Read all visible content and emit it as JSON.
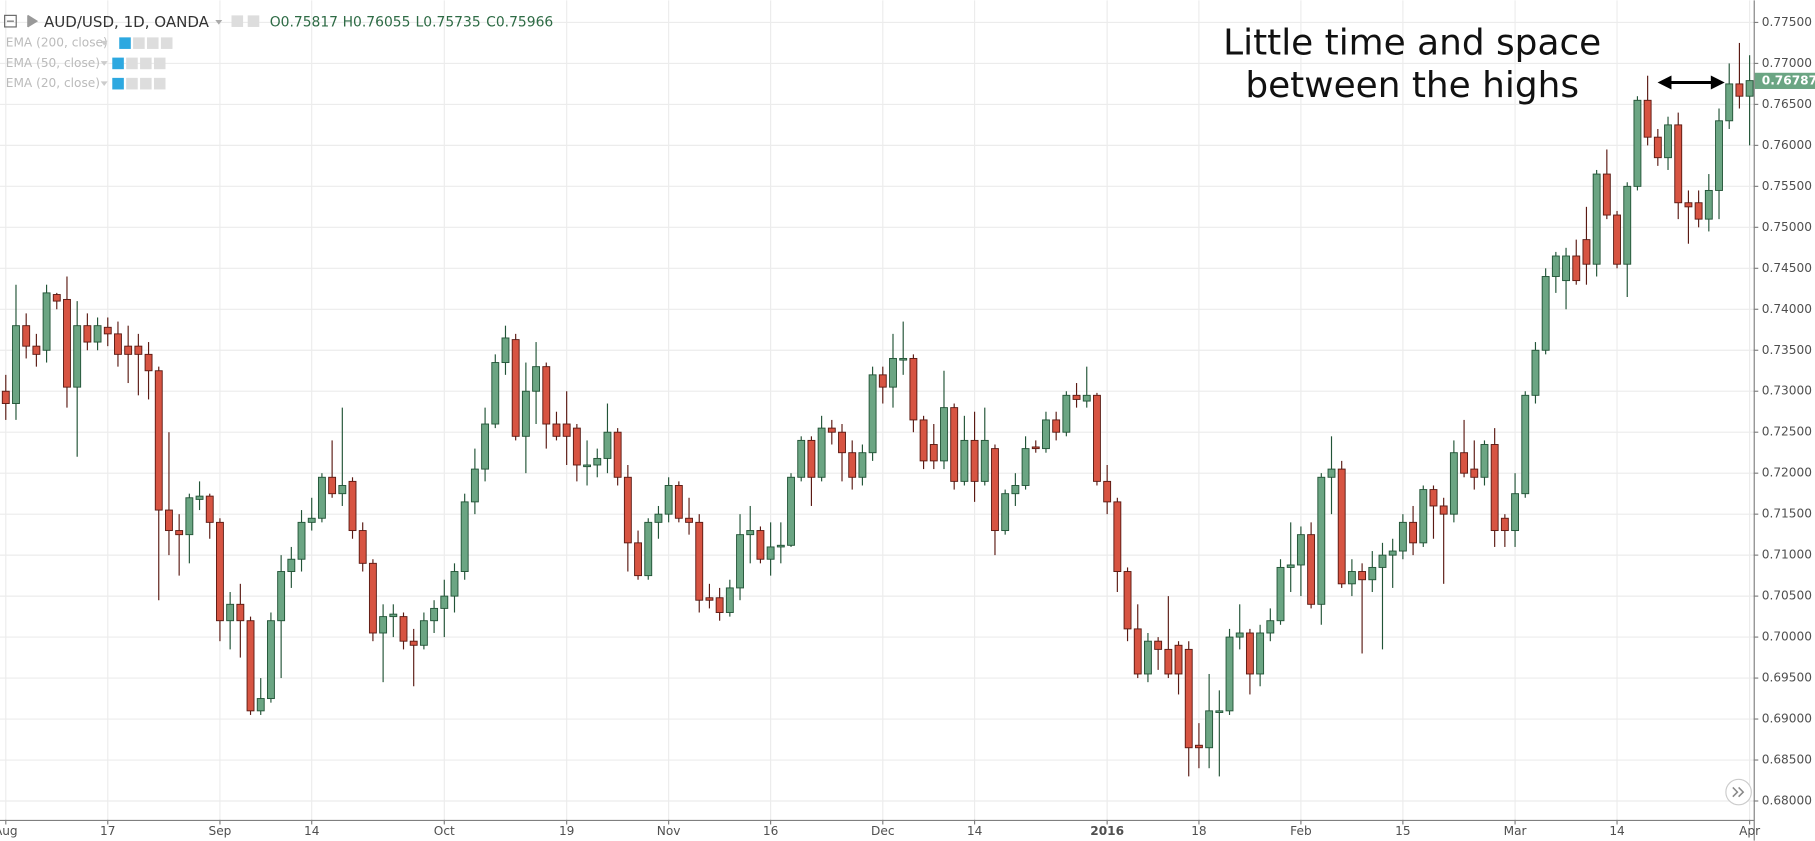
{
  "chart_data": {
    "type": "candlestick",
    "symbol": "AUD/USD, 1D, OANDA",
    "ohlc_readout": [
      "O0.75817",
      "H0.76055",
      "L0.75735",
      "C0.75966"
    ],
    "indicators": [
      "EMA (200, close)",
      "EMA (50, close)",
      "EMA (20, close)"
    ],
    "annotation": [
      "Little time and space",
      "between the highs"
    ],
    "last_price": {
      "value": 0.76787,
      "label": "0.76787"
    },
    "up_color": "#6ba583",
    "up_border": "#225437",
    "down_color": "#d75442",
    "down_border": "#5b1a13",
    "grid": true,
    "ylim": [
      0.6777,
      0.7777
    ],
    "yticks": [
      {
        "value": 0.68,
        "label": "0.68000"
      },
      {
        "value": 0.685,
        "label": "0.68500"
      },
      {
        "value": 0.69,
        "label": "0.69000"
      },
      {
        "value": 0.695,
        "label": "0.69500"
      },
      {
        "value": 0.7,
        "label": "0.70000"
      },
      {
        "value": 0.705,
        "label": "0.70500"
      },
      {
        "value": 0.71,
        "label": "0.71000"
      },
      {
        "value": 0.715,
        "label": "0.71500"
      },
      {
        "value": 0.72,
        "label": "0.72000"
      },
      {
        "value": 0.725,
        "label": "0.72500"
      },
      {
        "value": 0.73,
        "label": "0.73000"
      },
      {
        "value": 0.735,
        "label": "0.73500"
      },
      {
        "value": 0.74,
        "label": "0.74000"
      },
      {
        "value": 0.745,
        "label": "0.74500"
      },
      {
        "value": 0.75,
        "label": "0.75000"
      },
      {
        "value": 0.755,
        "label": "0.75500"
      },
      {
        "value": 0.76,
        "label": "0.76000"
      },
      {
        "value": 0.765,
        "label": "0.76500"
      },
      {
        "value": 0.77,
        "label": "0.77000"
      },
      {
        "value": 0.775,
        "label": "0.77500"
      }
    ],
    "categories": [
      "Aug",
      null,
      null,
      null,
      null,
      null,
      null,
      null,
      null,
      null,
      "17",
      null,
      null,
      null,
      null,
      null,
      null,
      null,
      null,
      null,
      null,
      "Sep",
      null,
      null,
      null,
      null,
      null,
      null,
      null,
      null,
      "14",
      null,
      null,
      null,
      null,
      null,
      null,
      null,
      null,
      null,
      null,
      null,
      null,
      "Oct",
      null,
      null,
      null,
      null,
      null,
      null,
      null,
      null,
      null,
      null,
      null,
      "19",
      null,
      null,
      null,
      null,
      null,
      null,
      null,
      null,
      null,
      "Nov",
      null,
      null,
      null,
      null,
      null,
      null,
      null,
      null,
      null,
      "16",
      null,
      null,
      null,
      null,
      null,
      null,
      null,
      null,
      null,
      null,
      "Dec",
      null,
      null,
      null,
      null,
      null,
      null,
      null,
      null,
      "14",
      null,
      null,
      null,
      null,
      null,
      null,
      null,
      null,
      null,
      null,
      null,
      null,
      "2016",
      null,
      null,
      null,
      null,
      null,
      null,
      null,
      null,
      "18",
      null,
      null,
      null,
      null,
      null,
      null,
      null,
      null,
      null,
      "Feb",
      null,
      null,
      null,
      null,
      null,
      null,
      null,
      null,
      null,
      "15",
      null,
      null,
      null,
      null,
      null,
      null,
      null,
      null,
      null,
      null,
      "Mar",
      null,
      null,
      null,
      null,
      null,
      null,
      null,
      null,
      null,
      "14",
      null,
      null,
      null,
      null,
      null,
      null,
      null,
      null,
      null,
      null,
      null,
      null,
      "Apr"
    ],
    "open": [
      0.73,
      0.7285,
      0.738,
      0.7355,
      0.735,
      0.7418,
      0.7412,
      0.7305,
      0.738,
      0.736,
      0.7378,
      0.737,
      0.7355,
      0.7355,
      0.7345,
      0.7325,
      0.7155,
      0.713,
      0.7125,
      0.7168,
      0.7172,
      0.714,
      0.702,
      0.704,
      0.702,
      0.691,
      0.6925,
      0.702,
      0.708,
      0.7095,
      0.714,
      0.7145,
      0.7195,
      0.7175,
      0.719,
      0.713,
      0.709,
      0.7005,
      0.7025,
      0.7025,
      0.6995,
      0.699,
      0.702,
      0.7035,
      0.705,
      0.708,
      0.7165,
      0.7205,
      0.726,
      0.7335,
      0.7363,
      0.7245,
      0.73,
      0.733,
      0.726,
      0.726,
      0.7255,
      0.7208,
      0.721,
      0.7218,
      0.725,
      0.7195,
      0.7115,
      0.7075,
      0.714,
      0.715,
      0.7185,
      0.7145,
      0.714,
      0.7048,
      0.7048,
      0.703,
      0.706,
      0.7125,
      0.713,
      0.7095,
      0.711,
      0.7112,
      0.7195,
      0.724,
      0.7195,
      0.7255,
      0.725,
      0.7225,
      0.7195,
      0.7225,
      0.732,
      0.7305,
      0.7338,
      0.734,
      0.7265,
      0.7235,
      0.7215,
      0.728,
      0.719,
      0.724,
      0.719,
      0.723,
      0.713,
      0.7175,
      0.7185,
      0.7232,
      0.723,
      0.7265,
      0.725,
      0.7295,
      0.7288,
      0.7295,
      0.719,
      0.7165,
      0.708,
      0.701,
      0.6955,
      0.6995,
      0.6985,
      0.699,
      0.6985,
      0.6868,
      0.6865,
      0.6908,
      0.691,
      0.7,
      0.7005,
      0.6955,
      0.7005,
      0.702,
      0.7085,
      0.7088,
      0.7125,
      0.704,
      0.7195,
      0.7205,
      0.7065,
      0.708,
      0.707,
      0.7085,
      0.71,
      0.7105,
      0.714,
      0.7115,
      0.718,
      0.716,
      0.715,
      0.7225,
      0.7205,
      0.7195,
      0.7235,
      0.7145,
      0.713,
      0.7175,
      0.7295,
      0.735,
      0.744,
      0.7435,
      0.7465,
      0.7485,
      0.7455,
      0.7565,
      0.7515,
      0.7455,
      0.755,
      0.7655,
      0.761,
      0.7585,
      0.7625,
      0.753,
      0.753,
      0.751,
      0.7545,
      0.763,
      0.7675,
      0.766
    ],
    "high": [
      0.732,
      0.743,
      0.7395,
      0.737,
      0.743,
      0.742,
      0.744,
      0.741,
      0.7395,
      0.739,
      0.739,
      0.7385,
      0.738,
      0.737,
      0.736,
      0.733,
      0.725,
      0.715,
      0.7175,
      0.719,
      0.7175,
      0.7145,
      0.7055,
      0.7065,
      0.7025,
      0.695,
      0.703,
      0.71,
      0.711,
      0.7155,
      0.717,
      0.72,
      0.724,
      0.728,
      0.7195,
      0.714,
      0.7095,
      0.704,
      0.704,
      0.703,
      0.701,
      0.703,
      0.7045,
      0.707,
      0.709,
      0.7175,
      0.723,
      0.728,
      0.7345,
      0.738,
      0.737,
      0.7335,
      0.736,
      0.7335,
      0.7275,
      0.73,
      0.726,
      0.724,
      0.723,
      0.7285,
      0.7255,
      0.721,
      0.713,
      0.7145,
      0.716,
      0.7195,
      0.719,
      0.717,
      0.715,
      0.7065,
      0.706,
      0.707,
      0.715,
      0.716,
      0.7135,
      0.714,
      0.714,
      0.72,
      0.7245,
      0.7245,
      0.727,
      0.7265,
      0.726,
      0.724,
      0.7235,
      0.733,
      0.733,
      0.737,
      0.7385,
      0.7345,
      0.727,
      0.726,
      0.7325,
      0.7285,
      0.727,
      0.7275,
      0.728,
      0.7235,
      0.718,
      0.72,
      0.7245,
      0.724,
      0.7275,
      0.7275,
      0.73,
      0.731,
      0.733,
      0.7298,
      0.721,
      0.717,
      0.7085,
      0.704,
      0.7005,
      0.7,
      0.705,
      0.6995,
      0.6995,
      0.6895,
      0.6955,
      0.6935,
      0.701,
      0.704,
      0.701,
      0.7015,
      0.7035,
      0.7095,
      0.714,
      0.7135,
      0.714,
      0.72,
      0.7245,
      0.7215,
      0.7095,
      0.709,
      0.7105,
      0.7115,
      0.712,
      0.715,
      0.716,
      0.7185,
      0.7185,
      0.717,
      0.724,
      0.7265,
      0.724,
      0.724,
      0.7255,
      0.715,
      0.72,
      0.73,
      0.736,
      0.745,
      0.747,
      0.7475,
      0.7485,
      0.7525,
      0.757,
      0.7595,
      0.752,
      0.7555,
      0.766,
      0.7685,
      0.762,
      0.7635,
      0.764,
      0.7545,
      0.7545,
      0.7565,
      0.7645,
      0.77,
      0.7725,
      0.771
    ],
    "low": [
      0.7265,
      0.7265,
      0.734,
      0.733,
      0.7335,
      0.74,
      0.728,
      0.722,
      0.735,
      0.735,
      0.7355,
      0.733,
      0.731,
      0.7295,
      0.729,
      0.7045,
      0.71,
      0.7075,
      0.709,
      0.7155,
      0.712,
      0.6995,
      0.6985,
      0.6975,
      0.6905,
      0.6905,
      0.692,
      0.695,
      0.706,
      0.708,
      0.713,
      0.714,
      0.717,
      0.716,
      0.712,
      0.708,
      0.6995,
      0.6945,
      0.7,
      0.6985,
      0.694,
      0.6985,
      0.7005,
      0.7,
      0.703,
      0.707,
      0.715,
      0.719,
      0.7255,
      0.732,
      0.724,
      0.72,
      0.726,
      0.723,
      0.724,
      0.721,
      0.719,
      0.7185,
      0.7195,
      0.72,
      0.7185,
      0.708,
      0.707,
      0.707,
      0.712,
      0.714,
      0.714,
      0.7125,
      0.703,
      0.7035,
      0.702,
      0.7025,
      0.7045,
      0.709,
      0.709,
      0.7075,
      0.709,
      0.711,
      0.719,
      0.716,
      0.719,
      0.7235,
      0.719,
      0.718,
      0.7185,
      0.7215,
      0.7285,
      0.728,
      0.732,
      0.725,
      0.7205,
      0.7205,
      0.7205,
      0.718,
      0.7185,
      0.7165,
      0.7185,
      0.71,
      0.7125,
      0.716,
      0.718,
      0.7225,
      0.7225,
      0.724,
      0.7245,
      0.728,
      0.728,
      0.7185,
      0.715,
      0.7055,
      0.6995,
      0.695,
      0.6945,
      0.696,
      0.695,
      0.693,
      0.683,
      0.684,
      0.684,
      0.683,
      0.6905,
      0.6985,
      0.693,
      0.694,
      0.6995,
      0.7015,
      0.7055,
      0.705,
      0.7035,
      0.7015,
      0.715,
      0.706,
      0.705,
      0.698,
      0.7055,
      0.6985,
      0.706,
      0.7095,
      0.71,
      0.711,
      0.712,
      0.7065,
      0.714,
      0.7195,
      0.718,
      0.7185,
      0.711,
      0.711,
      0.711,
      0.717,
      0.7285,
      0.7345,
      0.742,
      0.74,
      0.743,
      0.743,
      0.744,
      0.751,
      0.745,
      0.7415,
      0.7545,
      0.76,
      0.7575,
      0.757,
      0.751,
      0.748,
      0.75,
      0.7495,
      0.751,
      0.762,
      0.7645,
      0.76
    ],
    "close": [
      0.7285,
      0.738,
      0.7355,
      0.7345,
      0.742,
      0.741,
      0.7305,
      0.738,
      0.736,
      0.738,
      0.737,
      0.7345,
      0.7345,
      0.7345,
      0.7325,
      0.7155,
      0.713,
      0.7125,
      0.717,
      0.7172,
      0.714,
      0.702,
      0.704,
      0.702,
      0.691,
      0.6925,
      0.702,
      0.708,
      0.7095,
      0.714,
      0.7145,
      0.7195,
      0.7175,
      0.7185,
      0.713,
      0.709,
      0.7005,
      0.7025,
      0.7028,
      0.6995,
      0.699,
      0.702,
      0.7035,
      0.705,
      0.708,
      0.7165,
      0.7205,
      0.726,
      0.7335,
      0.7365,
      0.7245,
      0.73,
      0.733,
      0.726,
      0.7245,
      0.7245,
      0.721,
      0.721,
      0.7218,
      0.725,
      0.7195,
      0.7115,
      0.7075,
      0.714,
      0.715,
      0.7185,
      0.7145,
      0.714,
      0.7045,
      0.7045,
      0.703,
      0.706,
      0.7125,
      0.713,
      0.7095,
      0.711,
      0.7112,
      0.7195,
      0.724,
      0.7195,
      0.7255,
      0.725,
      0.7225,
      0.7195,
      0.7225,
      0.732,
      0.7305,
      0.734,
      0.734,
      0.7265,
      0.7215,
      0.7215,
      0.728,
      0.719,
      0.724,
      0.719,
      0.724,
      0.713,
      0.7175,
      0.7185,
      0.723,
      0.723,
      0.7265,
      0.725,
      0.7295,
      0.729,
      0.7295,
      0.719,
      0.7165,
      0.708,
      0.701,
      0.6955,
      0.6995,
      0.6985,
      0.6955,
      0.6955,
      0.6865,
      0.6865,
      0.691,
      0.691,
      0.7,
      0.7005,
      0.6955,
      0.7005,
      0.702,
      0.7085,
      0.7088,
      0.7125,
      0.704,
      0.7195,
      0.7205,
      0.7065,
      0.708,
      0.707,
      0.7085,
      0.71,
      0.7105,
      0.714,
      0.7115,
      0.718,
      0.716,
      0.715,
      0.7225,
      0.72,
      0.7195,
      0.7235,
      0.713,
      0.713,
      0.7175,
      0.7295,
      0.735,
      0.744,
      0.7465,
      0.7465,
      0.7435,
      0.7455,
      0.7565,
      0.7515,
      0.7455,
      0.755,
      0.7655,
      0.761,
      0.7585,
      0.7625,
      0.753,
      0.7525,
      0.751,
      0.7545,
      0.763,
      0.7675,
      0.766,
      0.7679
    ]
  }
}
